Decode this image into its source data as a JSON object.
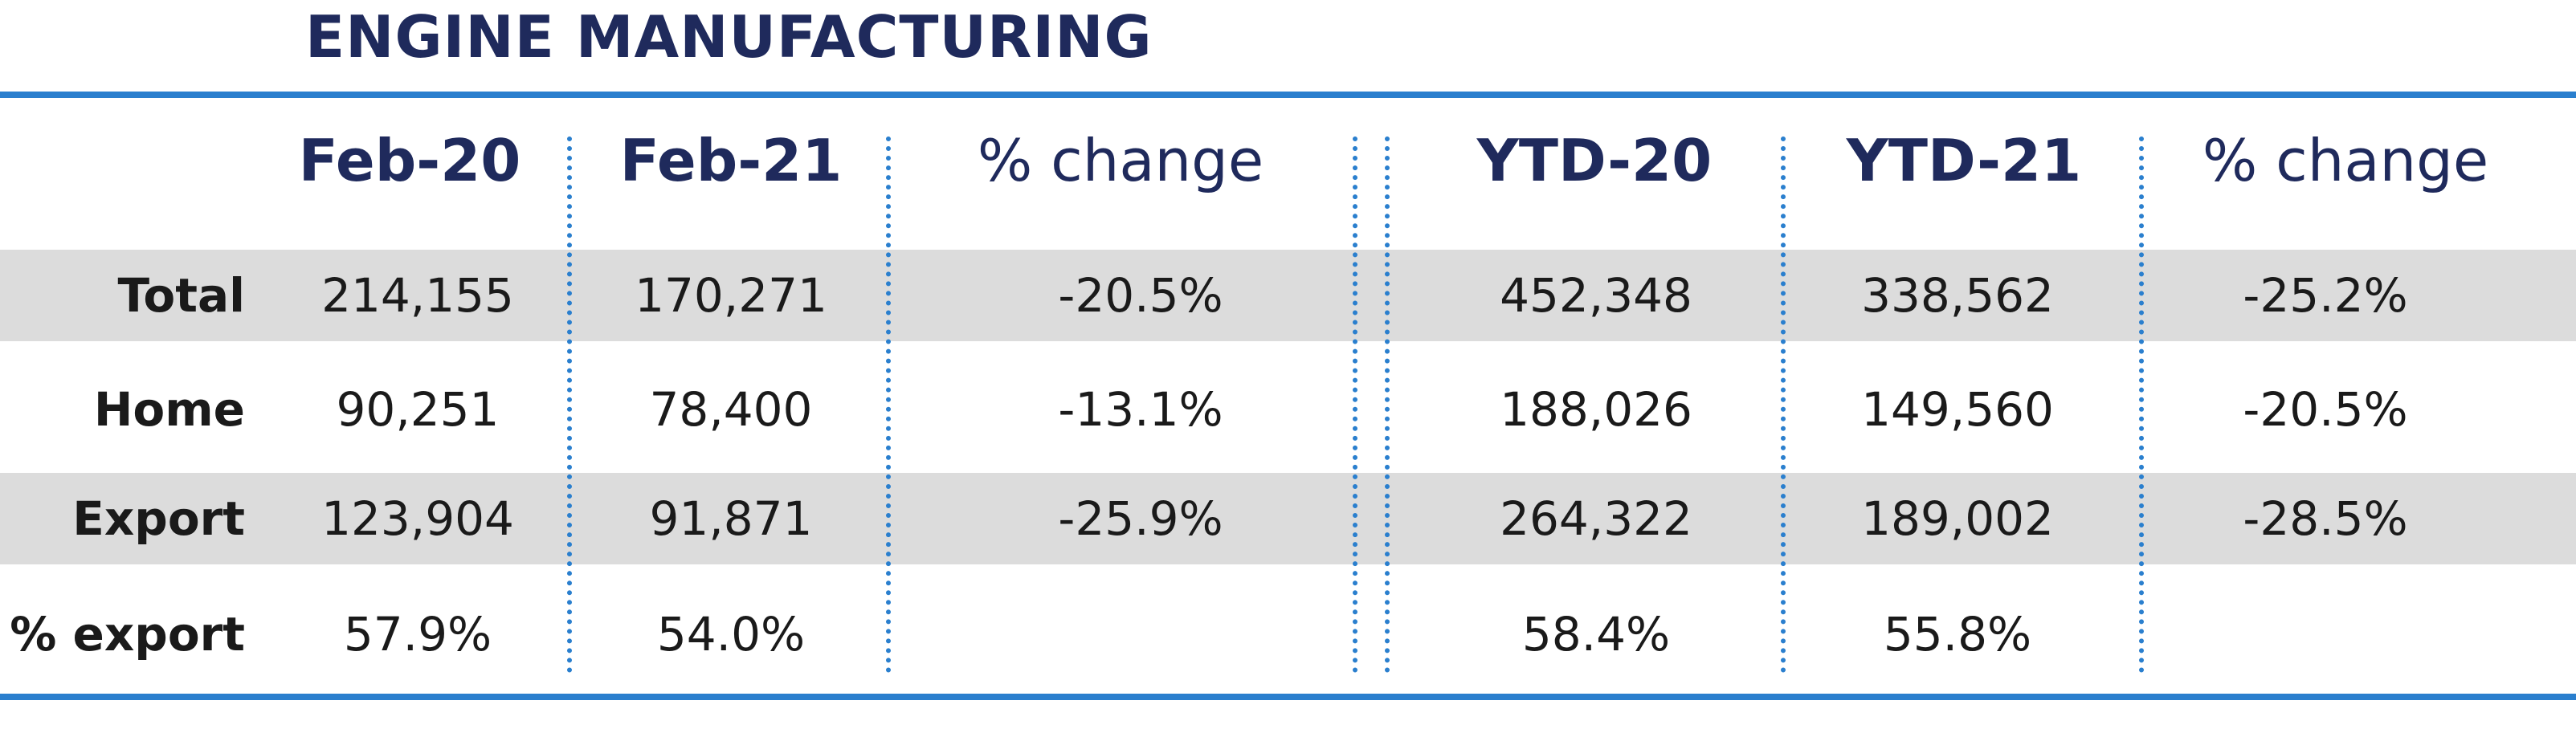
{
  "title": "ENGINE MANUFACTURING",
  "columns": [
    "Feb-20",
    "Feb-21",
    "% change",
    "YTD-20",
    "YTD-21",
    "% change"
  ],
  "rows": [
    {
      "label": "Total",
      "values": [
        "214,155",
        "170,271",
        "-20.5%",
        "452,348",
        "338,562",
        "-25.2%"
      ]
    },
    {
      "label": "Home",
      "values": [
        "90,251",
        "78,400",
        "-13.1%",
        "188,026",
        "149,560",
        "-20.5%"
      ]
    },
    {
      "label": "Export",
      "values": [
        "123,904",
        "91,871",
        "-25.9%",
        "264,322",
        "189,002",
        "-28.5%"
      ]
    },
    {
      "label": "% export",
      "values": [
        "57.9%",
        "54.0%",
        "",
        "58.4%",
        "55.8%",
        ""
      ]
    }
  ],
  "colors": {
    "accent": "#2a7fce",
    "heading": "#1f2a5c",
    "band": "#dcdcdc"
  }
}
